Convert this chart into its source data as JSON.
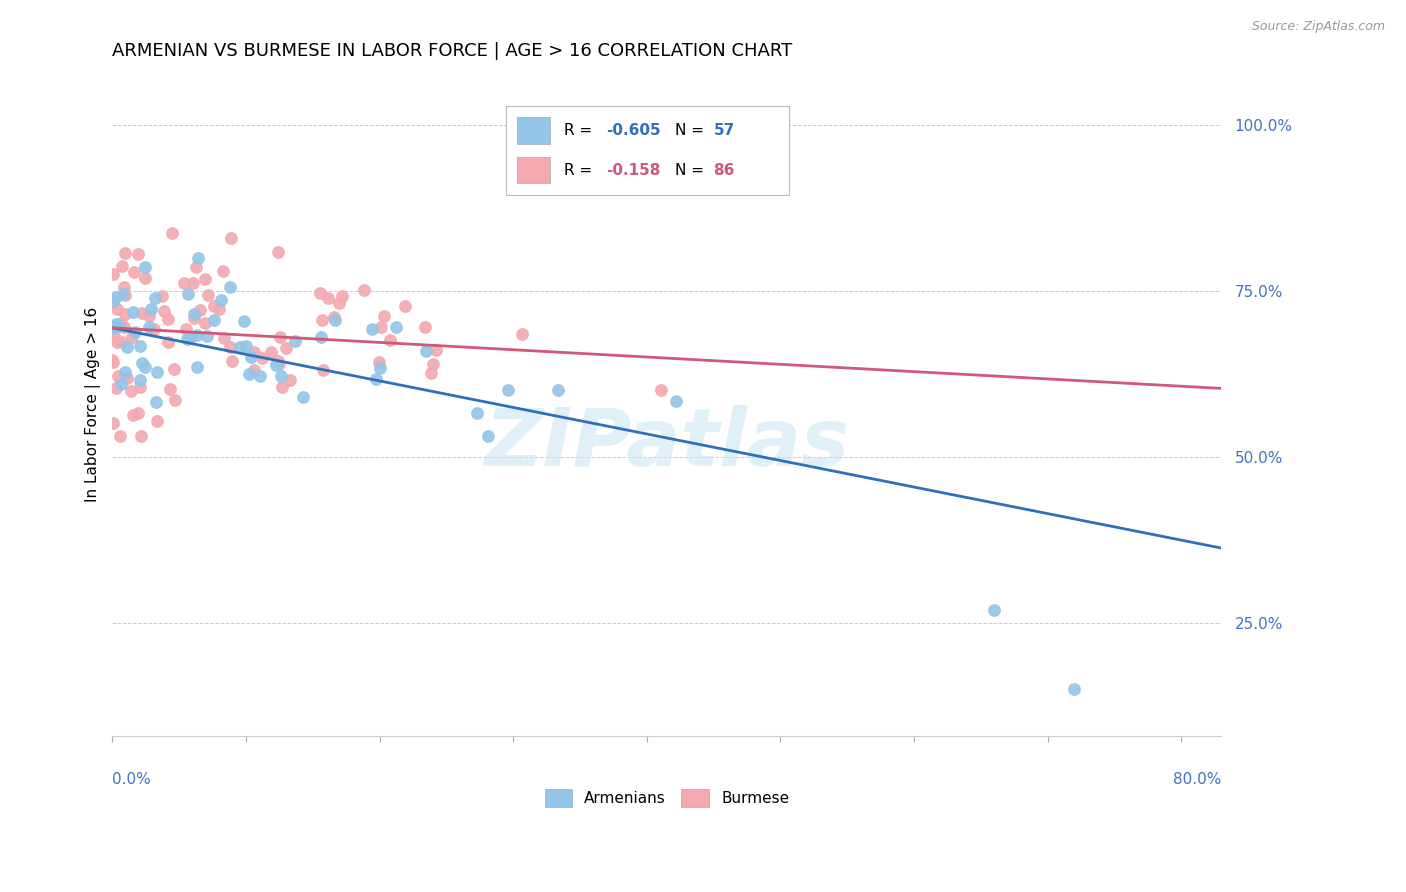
{
  "title": "ARMENIAN VS BURMESE IN LABOR FORCE | AGE > 16 CORRELATION CHART",
  "source": "Source: ZipAtlas.com",
  "ylabel": "In Labor Force | Age > 16",
  "watermark": "ZIPatlas",
  "armenian_color": "#92c5e8",
  "burmese_color": "#f4a8b0",
  "armenian_line_color": "#3070b8",
  "burmese_line_color": "#d05878",
  "armenian_R": "-0.605",
  "armenian_N": "57",
  "burmese_R": "-0.158",
  "burmese_N": "86",
  "xlim": [
    0.0,
    0.83
  ],
  "ylim": [
    0.08,
    1.08
  ],
  "yticks": [
    0.25,
    0.5,
    0.75,
    1.0
  ],
  "ytick_labels": [
    "25.0%",
    "50.0%",
    "75.0%",
    "100.0%"
  ],
  "background_color": "#ffffff",
  "grid_color": "#cccccc",
  "axis_color": "#4472c4",
  "title_fontsize": 13,
  "label_fontsize": 11
}
